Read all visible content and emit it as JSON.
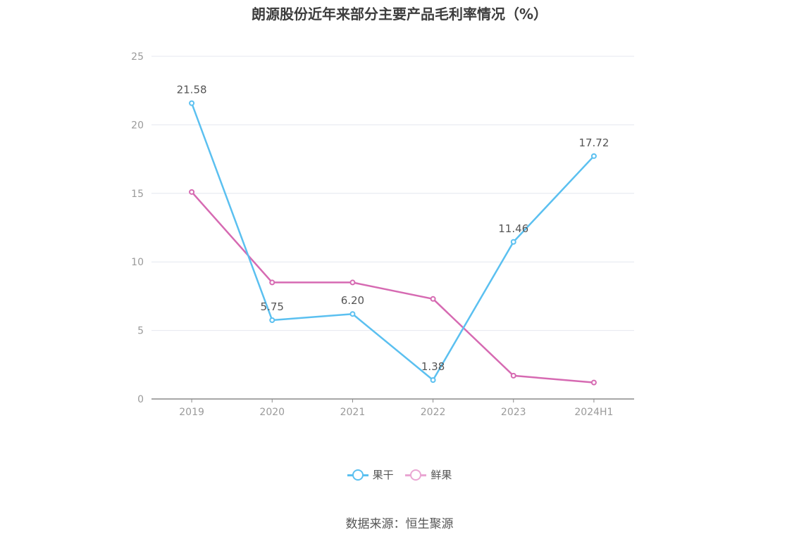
{
  "title": "朗源股份近年来部分主要产品毛利率情况（%）",
  "source": "数据来源：恒生聚源",
  "colors": {
    "series1": "#5bc0f0",
    "series2": "#d66ab2",
    "legend2": "#eaa6d3",
    "grid": "#e4e7ef",
    "axis": "#8a8a8a"
  },
  "chart_data": {
    "type": "line",
    "title": "朗源股份近年来部分主要产品毛利率情况（%）",
    "xlabel": "",
    "ylabel": "",
    "categories": [
      "2019",
      "2020",
      "2021",
      "2022",
      "2023",
      "2024H1"
    ],
    "ylim": [
      0,
      25
    ],
    "yticks": [
      "0",
      "5",
      "10",
      "15",
      "20",
      "25"
    ],
    "grid": true,
    "legend": "bottom",
    "series": [
      {
        "name": "果干",
        "values": [
          21.58,
          5.75,
          6.2,
          1.38,
          11.46,
          17.72
        ],
        "labels": [
          "21.58",
          "5.75",
          "6.20",
          "1.38",
          "11.46",
          "17.72"
        ]
      },
      {
        "name": "鲜果",
        "values": [
          15.1,
          8.5,
          8.5,
          7.3,
          1.7,
          1.2
        ]
      }
    ]
  }
}
